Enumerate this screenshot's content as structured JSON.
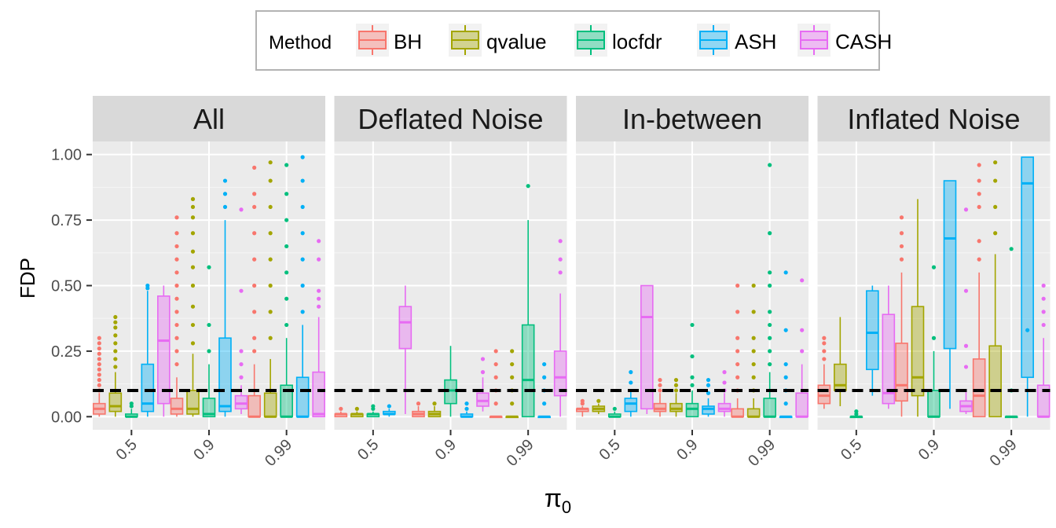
{
  "chart_data": {
    "type": "boxplot",
    "facets": [
      "All",
      "Deflated Noise",
      "In-between",
      "Inflated Noise"
    ],
    "categories": [
      "0.5",
      "0.9",
      "0.99"
    ],
    "xlabel": "π",
    "xlabel_subscript": "0",
    "ylabel": "FDP",
    "ylim": [
      -0.05,
      1.05
    ],
    "yticks": [
      0.0,
      0.25,
      0.5,
      0.75,
      1.0
    ],
    "ytick_labels": [
      "0.00",
      "0.25",
      "0.50",
      "0.75",
      "1.00"
    ],
    "reference_line": 0.1,
    "legend": {
      "title": "Method",
      "position": "top"
    },
    "methods": [
      "BH",
      "qvalue",
      "locfdr",
      "ASH",
      "CASH"
    ],
    "colors": {
      "BH": "#F8766D",
      "qvalue": "#A3A500",
      "locfdr": "#00BF7D",
      "ASH": "#00B0F6",
      "CASH": "#E76BF3"
    },
    "boxes": {
      "All": {
        "0.5": {
          "BH": {
            "lo": 0.0,
            "q1": 0.01,
            "med": 0.03,
            "q3": 0.05,
            "hi": 0.09,
            "out": [
              0.1,
              0.12,
              0.14,
              0.16,
              0.18,
              0.2,
              0.22,
              0.24,
              0.26,
              0.28,
              0.3
            ]
          },
          "qvalue": {
            "lo": 0.0,
            "q1": 0.02,
            "med": 0.04,
            "q3": 0.09,
            "hi": 0.17,
            "out": [
              0.19,
              0.22,
              0.25,
              0.28,
              0.31,
              0.34,
              0.36,
              0.38
            ]
          },
          "locfdr": {
            "lo": 0.0,
            "q1": 0.0,
            "med": 0.0,
            "q3": 0.01,
            "hi": 0.03,
            "out": [
              0.04,
              0.05
            ]
          },
          "ASH": {
            "lo": 0.0,
            "q1": 0.02,
            "med": 0.05,
            "q3": 0.2,
            "hi": 0.48,
            "out": [
              0.49,
              0.5
            ]
          },
          "CASH": {
            "lo": 0.0,
            "q1": 0.05,
            "med": 0.29,
            "q3": 0.46,
            "hi": 0.5,
            "out": []
          }
        },
        "0.9": {
          "BH": {
            "lo": 0.0,
            "q1": 0.01,
            "med": 0.03,
            "q3": 0.07,
            "hi": 0.15,
            "out": [
              0.2,
              0.25,
              0.3,
              0.35,
              0.4,
              0.45,
              0.5,
              0.55,
              0.6,
              0.65,
              0.7,
              0.76
            ]
          },
          "qvalue": {
            "lo": 0.0,
            "q1": 0.01,
            "med": 0.03,
            "q3": 0.1,
            "hi": 0.24,
            "out": [
              0.28,
              0.35,
              0.42,
              0.5,
              0.57,
              0.63,
              0.7,
              0.76,
              0.8,
              0.83
            ]
          },
          "locfdr": {
            "lo": 0.0,
            "q1": 0.0,
            "med": 0.01,
            "q3": 0.07,
            "hi": 0.2,
            "out": [
              0.25,
              0.35,
              0.57
            ]
          },
          "ASH": {
            "lo": 0.0,
            "q1": 0.02,
            "med": 0.04,
            "q3": 0.3,
            "hi": 0.75,
            "out": [
              0.8,
              0.85,
              0.9
            ]
          },
          "CASH": {
            "lo": 0.01,
            "q1": 0.03,
            "med": 0.05,
            "q3": 0.08,
            "hi": 0.12,
            "out": [
              0.15,
              0.2,
              0.25,
              0.48,
              0.79
            ]
          }
        },
        "0.99": {
          "BH": {
            "lo": 0.0,
            "q1": 0.0,
            "med": 0.0,
            "q3": 0.08,
            "hi": 0.2,
            "out": [
              0.25,
              0.3,
              0.4,
              0.5,
              0.6,
              0.7,
              0.8,
              0.85,
              0.95
            ]
          },
          "qvalue": {
            "lo": 0.0,
            "q1": 0.0,
            "med": 0.0,
            "q3": 0.09,
            "hi": 0.22,
            "out": [
              0.3,
              0.4,
              0.5,
              0.6,
              0.7,
              0.8,
              0.9,
              0.97
            ]
          },
          "locfdr": {
            "lo": 0.0,
            "q1": 0.0,
            "med": 0.0,
            "q3": 0.12,
            "hi": 0.3,
            "out": [
              0.35,
              0.45,
              0.55,
              0.65,
              0.75,
              0.85,
              0.96
            ]
          },
          "ASH": {
            "lo": 0.0,
            "q1": 0.0,
            "med": 0.0,
            "q3": 0.15,
            "hi": 0.35,
            "out": [
              0.4,
              0.5,
              0.6,
              0.7,
              0.8,
              0.9,
              0.99
            ]
          },
          "CASH": {
            "lo": 0.0,
            "q1": 0.0,
            "med": 0.01,
            "q3": 0.17,
            "hi": 0.38,
            "out": [
              0.42,
              0.45,
              0.48,
              0.6,
              0.67
            ]
          }
        }
      },
      "Deflated Noise": {
        "0.5": {
          "BH": {
            "lo": 0.0,
            "q1": 0.0,
            "med": 0.01,
            "q3": 0.01,
            "hi": 0.02,
            "out": [
              0.03
            ]
          },
          "qvalue": {
            "lo": 0.0,
            "q1": 0.0,
            "med": 0.01,
            "q3": 0.01,
            "hi": 0.02,
            "out": [
              0.03
            ]
          },
          "locfdr": {
            "lo": 0.0,
            "q1": 0.0,
            "med": 0.01,
            "q3": 0.01,
            "hi": 0.02,
            "out": [
              0.03,
              0.04
            ]
          },
          "ASH": {
            "lo": 0.0,
            "q1": 0.01,
            "med": 0.01,
            "q3": 0.02,
            "hi": 0.03,
            "out": [
              0.04
            ]
          },
          "CASH": {
            "lo": 0.01,
            "q1": 0.26,
            "med": 0.36,
            "q3": 0.42,
            "hi": 0.5,
            "out": []
          }
        },
        "0.9": {
          "BH": {
            "lo": 0.0,
            "q1": 0.0,
            "med": 0.01,
            "q3": 0.02,
            "hi": 0.04,
            "out": [
              0.05
            ]
          },
          "qvalue": {
            "lo": 0.0,
            "q1": 0.0,
            "med": 0.01,
            "q3": 0.02,
            "hi": 0.04,
            "out": [
              0.05
            ]
          },
          "locfdr": {
            "lo": 0.0,
            "q1": 0.05,
            "med": 0.1,
            "q3": 0.14,
            "hi": 0.27,
            "out": []
          },
          "ASH": {
            "lo": 0.0,
            "q1": 0.0,
            "med": 0.0,
            "q3": 0.01,
            "hi": 0.02,
            "out": [
              0.03,
              0.05
            ]
          },
          "CASH": {
            "lo": 0.02,
            "q1": 0.04,
            "med": 0.06,
            "q3": 0.09,
            "hi": 0.15,
            "out": [
              0.17,
              0.22
            ]
          }
        },
        "0.99": {
          "BH": {
            "lo": 0.0,
            "q1": 0.0,
            "med": 0.0,
            "q3": 0.0,
            "hi": 0.0,
            "out": [
              0.05,
              0.1,
              0.15,
              0.2,
              0.25
            ]
          },
          "qvalue": {
            "lo": 0.0,
            "q1": 0.0,
            "med": 0.0,
            "q3": 0.0,
            "hi": 0.0,
            "out": [
              0.05,
              0.1,
              0.15,
              0.2,
              0.25
            ]
          },
          "locfdr": {
            "lo": 0.0,
            "q1": 0.0,
            "med": 0.14,
            "q3": 0.35,
            "hi": 0.75,
            "out": [
              0.88
            ]
          },
          "ASH": {
            "lo": 0.0,
            "q1": 0.0,
            "med": 0.0,
            "q3": 0.0,
            "hi": 0.0,
            "out": [
              0.05,
              0.1,
              0.15,
              0.2
            ]
          },
          "CASH": {
            "lo": 0.0,
            "q1": 0.08,
            "med": 0.15,
            "q3": 0.25,
            "hi": 0.47,
            "out": [
              0.55,
              0.6,
              0.67
            ]
          }
        }
      },
      "In-between": {
        "0.5": {
          "BH": {
            "lo": 0.0,
            "q1": 0.02,
            "med": 0.03,
            "q3": 0.03,
            "hi": 0.04,
            "out": [
              0.05,
              0.06
            ]
          },
          "qvalue": {
            "lo": 0.01,
            "q1": 0.02,
            "med": 0.03,
            "q3": 0.04,
            "hi": 0.05,
            "out": [
              0.06
            ]
          },
          "locfdr": {
            "lo": 0.0,
            "q1": 0.0,
            "med": 0.0,
            "q3": 0.01,
            "hi": 0.02,
            "out": [
              0.03
            ]
          },
          "ASH": {
            "lo": 0.0,
            "q1": 0.02,
            "med": 0.05,
            "q3": 0.07,
            "hi": 0.1,
            "out": [
              0.13,
              0.17
            ]
          },
          "CASH": {
            "lo": 0.01,
            "q1": 0.03,
            "med": 0.38,
            "q3": 0.5,
            "hi": 0.5,
            "out": []
          }
        },
        "0.9": {
          "BH": {
            "lo": 0.0,
            "q1": 0.02,
            "med": 0.03,
            "q3": 0.05,
            "hi": 0.09,
            "out": [
              0.1,
              0.12,
              0.14
            ]
          },
          "qvalue": {
            "lo": 0.0,
            "q1": 0.02,
            "med": 0.03,
            "q3": 0.05,
            "hi": 0.09,
            "out": [
              0.1,
              0.12,
              0.14
            ]
          },
          "locfdr": {
            "lo": 0.0,
            "q1": 0.0,
            "med": 0.03,
            "q3": 0.05,
            "hi": 0.1,
            "out": [
              0.12,
              0.15,
              0.23,
              0.35
            ]
          },
          "ASH": {
            "lo": 0.0,
            "q1": 0.01,
            "med": 0.03,
            "q3": 0.04,
            "hi": 0.07,
            "out": [
              0.09,
              0.12,
              0.14
            ]
          },
          "CASH": {
            "lo": 0.0,
            "q1": 0.02,
            "med": 0.03,
            "q3": 0.05,
            "hi": 0.09,
            "out": [
              0.1,
              0.13,
              0.17
            ]
          }
        },
        "0.99": {
          "BH": {
            "lo": 0.0,
            "q1": 0.0,
            "med": 0.0,
            "q3": 0.03,
            "hi": 0.07,
            "out": [
              0.1,
              0.15,
              0.2,
              0.25,
              0.3,
              0.4,
              0.5
            ]
          },
          "qvalue": {
            "lo": 0.0,
            "q1": 0.0,
            "med": 0.0,
            "q3": 0.03,
            "hi": 0.07,
            "out": [
              0.1,
              0.15,
              0.2,
              0.25,
              0.3,
              0.4,
              0.5
            ]
          },
          "locfdr": {
            "lo": 0.0,
            "q1": 0.0,
            "med": 0.0,
            "q3": 0.07,
            "hi": 0.17,
            "out": [
              0.2,
              0.25,
              0.3,
              0.35,
              0.4,
              0.5,
              0.55,
              0.7,
              0.96
            ]
          },
          "ASH": {
            "lo": 0.0,
            "q1": 0.0,
            "med": 0.0,
            "q3": 0.0,
            "hi": 0.0,
            "out": [
              0.05,
              0.1,
              0.15,
              0.2,
              0.33,
              0.55
            ]
          },
          "CASH": {
            "lo": 0.0,
            "q1": 0.0,
            "med": 0.0,
            "q3": 0.09,
            "hi": 0.2,
            "out": [
              0.25,
              0.33,
              0.52
            ]
          }
        }
      },
      "Inflated Noise": {
        "0.5": {
          "BH": {
            "lo": 0.03,
            "q1": 0.05,
            "med": 0.08,
            "q3": 0.12,
            "hi": 0.2,
            "out": [
              0.22,
              0.25,
              0.28,
              0.3
            ]
          },
          "qvalue": {
            "lo": 0.04,
            "q1": 0.1,
            "med": 0.12,
            "q3": 0.2,
            "hi": 0.38,
            "out": []
          },
          "locfdr": {
            "lo": 0.0,
            "q1": 0.0,
            "med": 0.0,
            "q3": 0.0,
            "hi": 0.0,
            "out": [
              0.01,
              0.02
            ]
          },
          "ASH": {
            "lo": 0.08,
            "q1": 0.18,
            "med": 0.32,
            "q3": 0.48,
            "hi": 0.5,
            "out": []
          },
          "CASH": {
            "lo": 0.03,
            "q1": 0.05,
            "med": 0.09,
            "q3": 0.39,
            "hi": 0.5,
            "out": []
          }
        },
        "0.9": {
          "BH": {
            "lo": 0.0,
            "q1": 0.06,
            "med": 0.12,
            "q3": 0.28,
            "hi": 0.55,
            "out": [
              0.6,
              0.65,
              0.7,
              0.76
            ]
          },
          "qvalue": {
            "lo": 0.0,
            "q1": 0.08,
            "med": 0.15,
            "q3": 0.42,
            "hi": 0.83,
            "out": []
          },
          "locfdr": {
            "lo": 0.0,
            "q1": 0.0,
            "med": 0.0,
            "q3": 0.1,
            "hi": 0.25,
            "out": [
              0.3,
              0.57
            ]
          },
          "ASH": {
            "lo": 0.03,
            "q1": 0.26,
            "med": 0.68,
            "q3": 0.9,
            "hi": 0.9,
            "out": []
          },
          "CASH": {
            "lo": 0.01,
            "q1": 0.02,
            "med": 0.04,
            "q3": 0.06,
            "hi": 0.1,
            "out": [
              0.19,
              0.27,
              0.48,
              0.79
            ]
          }
        },
        "0.99": {
          "BH": {
            "lo": 0.0,
            "q1": 0.0,
            "med": 0.08,
            "q3": 0.22,
            "hi": 0.55,
            "out": [
              0.6,
              0.67,
              0.8,
              0.85,
              0.9,
              0.96
            ]
          },
          "qvalue": {
            "lo": 0.0,
            "q1": 0.0,
            "med": 0.1,
            "q3": 0.27,
            "hi": 0.62,
            "out": [
              0.7,
              0.8,
              0.9,
              0.97
            ]
          },
          "locfdr": {
            "lo": 0.0,
            "q1": 0.0,
            "med": 0.0,
            "q3": 0.0,
            "hi": 0.0,
            "out": [
              0.1,
              0.64
            ]
          },
          "ASH": {
            "lo": 0.0,
            "q1": 0.15,
            "med": 0.89,
            "q3": 0.99,
            "hi": 0.99,
            "out": [
              0.33
            ]
          },
          "CASH": {
            "lo": 0.0,
            "q1": 0.0,
            "med": 0.0,
            "q3": 0.12,
            "hi": 0.3,
            "out": [
              0.35,
              0.4,
              0.45,
              0.5
            ]
          }
        }
      }
    }
  }
}
